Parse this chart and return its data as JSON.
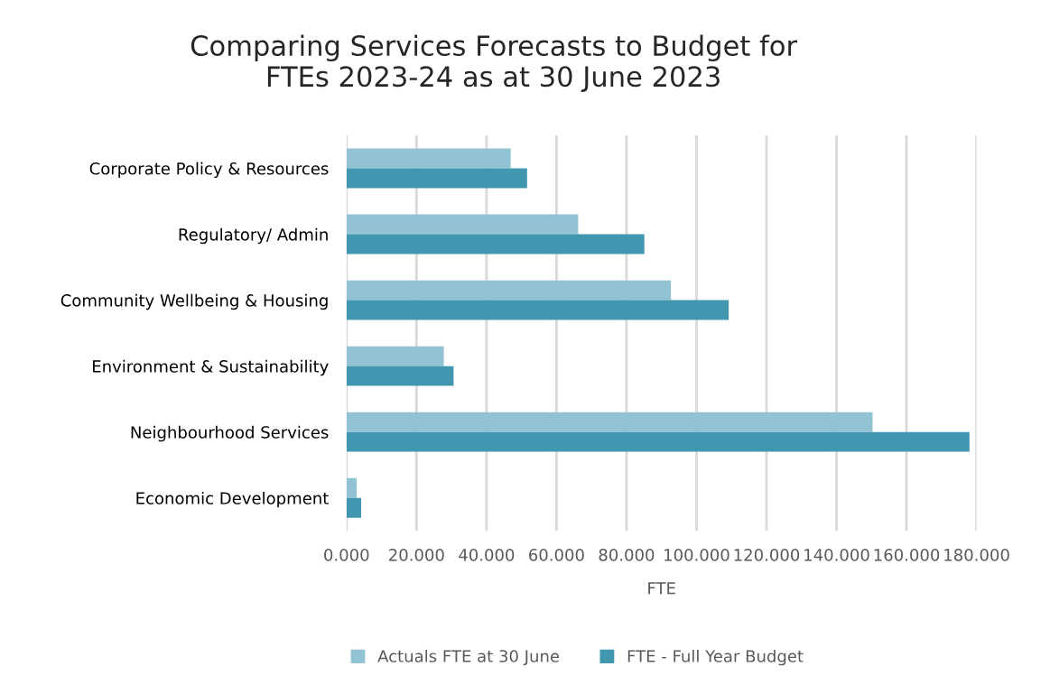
{
  "chart_data": {
    "type": "bar",
    "orientation": "horizontal",
    "title": "Comparing Services Forecasts to Budget for\nFTEs 2023-24 as at 30 June 2023",
    "xlabel": "FTE",
    "categories": [
      "Corporate Policy & Resources",
      "Regulatory/ Admin",
      "Community Wellbeing & Housing",
      "Environment & Sustainability",
      "Neighbourhood Services",
      "Economic Development"
    ],
    "series": [
      {
        "name": "Actuals FTE at 30 June",
        "color": "#92c3d5",
        "values": [
          46.9,
          66.2,
          92.7,
          27.8,
          150.3,
          2.9
        ]
      },
      {
        "name": "FTE - Full Year Budget",
        "color": "#4197b0",
        "values": [
          51.6,
          85.1,
          109.2,
          30.6,
          178.0,
          4.2
        ]
      }
    ],
    "xlim": [
      0,
      180
    ],
    "xticks": [
      {
        "value": 0,
        "label": "0.000"
      },
      {
        "value": 20,
        "label": "20.000"
      },
      {
        "value": 40,
        "label": "40.000"
      },
      {
        "value": 60,
        "label": "60.000"
      },
      {
        "value": 80,
        "label": "80.000"
      },
      {
        "value": 100,
        "label": "100.000"
      },
      {
        "value": 120,
        "label": "120.000"
      },
      {
        "value": 140,
        "label": "140.000"
      },
      {
        "value": 160,
        "label": "160.000"
      },
      {
        "value": 180,
        "label": "180.000"
      }
    ],
    "grid": "x",
    "legend": "bottom"
  }
}
